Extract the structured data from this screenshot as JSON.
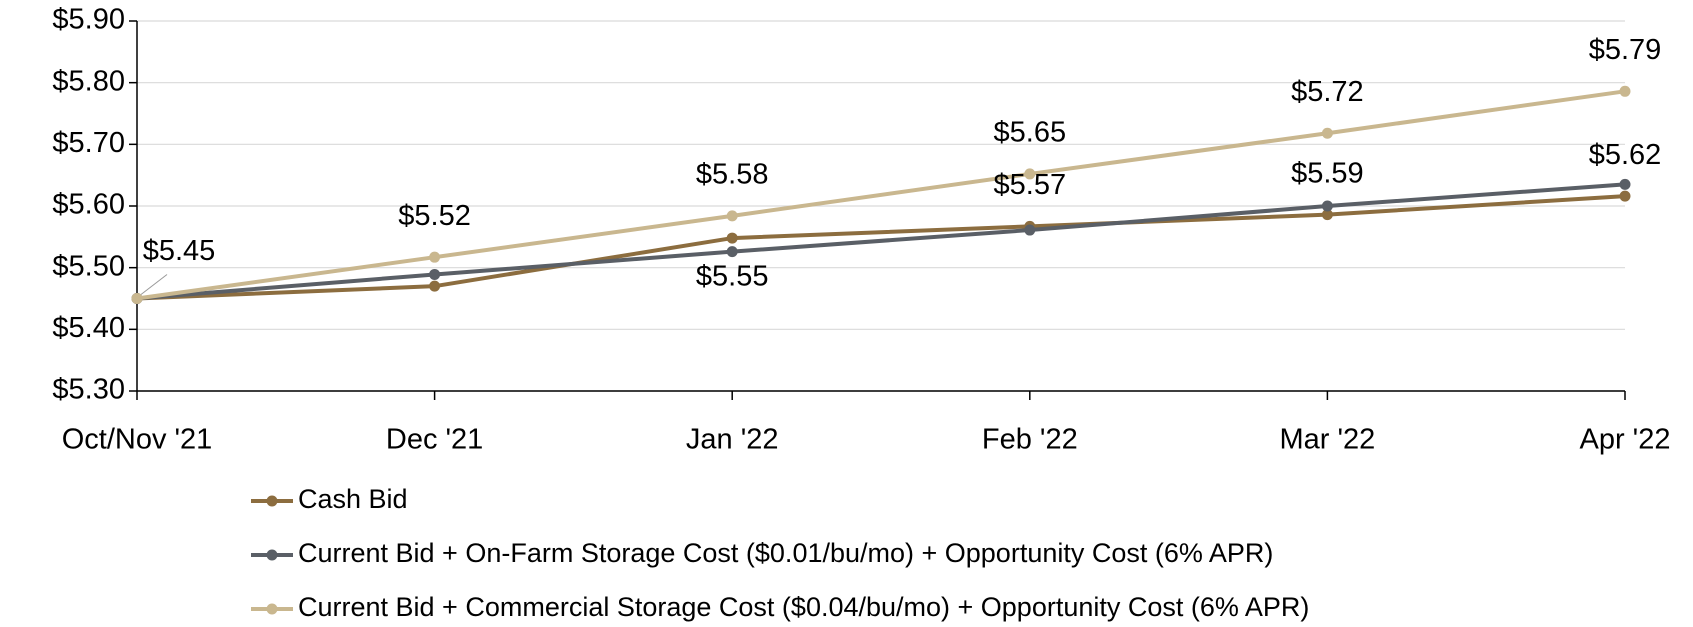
{
  "chart_data": {
    "type": "line",
    "categories": [
      "Oct/Nov '21",
      "Dec '21",
      "Jan '22",
      "Feb '22",
      "Mar '22",
      "Apr '22"
    ],
    "series": [
      {
        "name": "Cash Bid",
        "color": "#8c6d3f",
        "values": [
          5.45,
          5.47,
          5.548,
          5.567,
          5.586,
          5.616
        ],
        "value_labels": [
          "$5.45",
          null,
          "$5.55",
          "$5.57",
          "$5.59",
          "$5.62"
        ]
      },
      {
        "name": "Current Bid + On-Farm Storage Cost ($0.01/bu/mo) + Opportunity Cost (6% APR)",
        "color": "#5a5f66",
        "values": [
          5.45,
          5.489,
          5.526,
          5.561,
          5.6,
          5.635
        ]
      },
      {
        "name": "Current Bid + Commercial Storage Cost ($0.04/bu/mo) + Opportunity Cost (6% APR)",
        "color": "#c9b78f",
        "values": [
          5.45,
          5.517,
          5.584,
          5.652,
          5.718,
          5.786
        ],
        "value_labels": [
          null,
          "$5.52",
          "$5.58",
          "$5.65",
          "$5.72",
          "$5.79"
        ]
      }
    ],
    "ylim": [
      5.3,
      5.9
    ],
    "yticks": [
      {
        "value": 5.3,
        "label": "$5.30"
      },
      {
        "value": 5.4,
        "label": "$5.40"
      },
      {
        "value": 5.5,
        "label": "$5.50"
      },
      {
        "value": 5.6,
        "label": "$5.60"
      },
      {
        "value": 5.7,
        "label": "$5.70"
      },
      {
        "value": 5.8,
        "label": "$5.80"
      },
      {
        "value": 5.9,
        "label": "$5.90"
      }
    ],
    "grid": true,
    "legend": "bottom"
  }
}
